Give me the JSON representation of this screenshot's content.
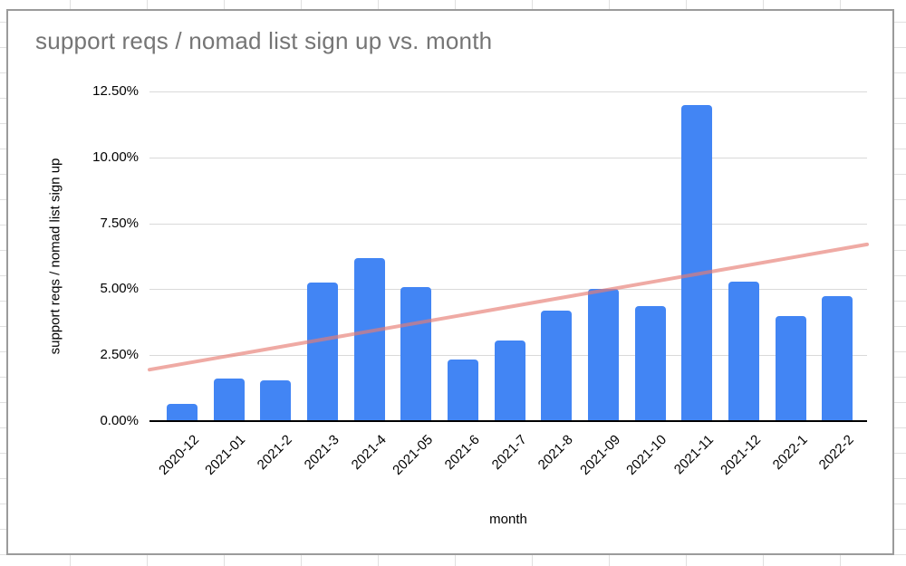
{
  "chart_data": {
    "type": "bar",
    "title": "support reqs / nomad list sign up vs. month",
    "xlabel": "month",
    "ylabel": "support reqs / nomad list sign up",
    "categories": [
      "2020-12",
      "2021-01",
      "2021-2",
      "2021-3",
      "2021-4",
      "2021-05",
      "2021-6",
      "2021-7",
      "2021-8",
      "2021-09",
      "2021-10",
      "2021-11",
      "2021-12",
      "2022-1",
      "2022-2"
    ],
    "values": [
      0.65,
      1.6,
      1.55,
      5.25,
      6.2,
      5.1,
      2.35,
      3.05,
      4.2,
      5.0,
      4.35,
      12.0,
      5.3,
      4.0,
      4.75
    ],
    "value_unit": "%",
    "ylim": [
      0,
      12.5
    ],
    "y_tick_values": [
      0,
      2.5,
      5,
      7.5,
      10,
      12.5
    ],
    "y_tick_labels": [
      "0.00%",
      "2.50%",
      "5.00%",
      "7.50%",
      "10.00%",
      "12.50%"
    ],
    "grid": true,
    "legend": "none",
    "trendline": {
      "type": "linear",
      "start_value": 1.95,
      "end_value": 6.7
    },
    "colors": {
      "bar": "#4285f4",
      "trendline": "#e67c73",
      "gridline": "#d9d9d9",
      "axis": "#000000",
      "title_text": "#757575",
      "card_border": "#9b9b9b",
      "sheet_gridline": "#e0e0e0"
    }
  }
}
